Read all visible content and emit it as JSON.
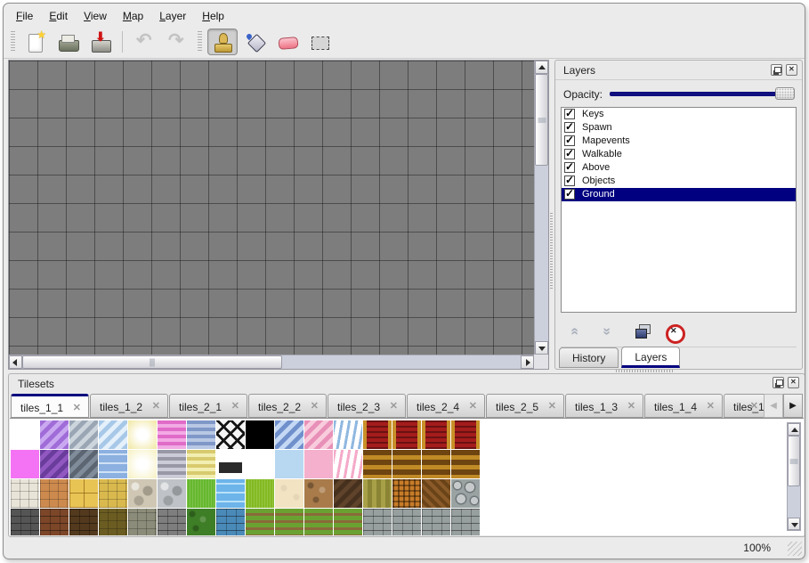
{
  "menu": {
    "items": [
      {
        "label": "File"
      },
      {
        "label": "Edit"
      },
      {
        "label": "View"
      },
      {
        "label": "Map"
      },
      {
        "label": "Layer"
      },
      {
        "label": "Help"
      }
    ]
  },
  "toolbar": {
    "buttons": [
      {
        "id": "new",
        "icon": "new-document-icon",
        "disabled": false,
        "active": false
      },
      {
        "id": "open",
        "icon": "open-folder-icon",
        "disabled": false,
        "active": false
      },
      {
        "id": "save",
        "icon": "save-icon",
        "disabled": false,
        "active": false
      },
      {
        "id": "undo",
        "icon": "undo-icon",
        "disabled": true,
        "active": false
      },
      {
        "id": "redo",
        "icon": "redo-icon",
        "disabled": true,
        "active": false
      },
      {
        "id": "stamp",
        "icon": "stamp-icon",
        "disabled": false,
        "active": true
      },
      {
        "id": "fill",
        "icon": "fill-bucket-icon",
        "disabled": false,
        "active": false
      },
      {
        "id": "eraser",
        "icon": "eraser-icon",
        "disabled": false,
        "active": false
      },
      {
        "id": "select",
        "icon": "selection-icon",
        "disabled": false,
        "active": false
      }
    ]
  },
  "layers_panel": {
    "title": "Layers",
    "opacity_label": "Opacity:",
    "opacity_value": 100,
    "titlebar_buttons": [
      {
        "icon": "float-panel-icon"
      },
      {
        "icon": "close-panel-icon"
      }
    ],
    "layers": [
      {
        "name": "Keys",
        "checked": true,
        "selected": false
      },
      {
        "name": "Spawn",
        "checked": true,
        "selected": false
      },
      {
        "name": "Mapevents",
        "checked": true,
        "selected": false
      },
      {
        "name": "Walkable",
        "checked": true,
        "selected": false
      },
      {
        "name": "Above",
        "checked": true,
        "selected": false
      },
      {
        "name": "Objects",
        "checked": true,
        "selected": false
      },
      {
        "name": "Ground",
        "checked": true,
        "selected": true
      }
    ],
    "actions": [
      {
        "id": "raise-layer",
        "icon": "raise-layer-icon"
      },
      {
        "id": "lower-layer",
        "icon": "lower-layer-icon"
      },
      {
        "id": "duplicate-layer",
        "icon": "duplicate-layer-icon"
      },
      {
        "id": "delete-layer",
        "icon": "delete-layer-icon"
      }
    ],
    "tabs": [
      {
        "label": "History",
        "active": false
      },
      {
        "label": "Layers",
        "active": true
      }
    ]
  },
  "tilesets_panel": {
    "title": "Tilesets",
    "titlebar_buttons": [
      {
        "icon": "float-panel-icon"
      },
      {
        "icon": "close-panel-icon"
      }
    ],
    "tabs": [
      {
        "label": "tiles_1_1",
        "active": true,
        "truncated": false
      },
      {
        "label": "tiles_1_2",
        "active": false,
        "truncated": false
      },
      {
        "label": "tiles_2_1",
        "active": false,
        "truncated": false
      },
      {
        "label": "tiles_2_2",
        "active": false,
        "truncated": false
      },
      {
        "label": "tiles_2_3",
        "active": false,
        "truncated": false
      },
      {
        "label": "tiles_2_4",
        "active": false,
        "truncated": false
      },
      {
        "label": "tiles_2_5",
        "active": false,
        "truncated": false
      },
      {
        "label": "tiles_1_3",
        "active": false,
        "truncated": false
      },
      {
        "label": "tiles_1_4",
        "active": false,
        "truncated": false
      },
      {
        "label": "tiles_1_",
        "active": false,
        "truncated": true
      }
    ],
    "tab_scroll_buttons": [
      {
        "icon": "scroll-tabs-left-icon",
        "glyph": "◀",
        "disabled": true
      },
      {
        "icon": "scroll-tabs-right-icon",
        "glyph": "▶",
        "disabled": false
      }
    ],
    "tiles": [
      [
        "empty",
        "diag:#a06cd8:#c9a8f0",
        "diag:#9aa6b4:#ccd4dc",
        "diag:#a8c8e8:#e4f0fa",
        "glow:#f2e9a8",
        "hs:#e06cc8:#f2aae4",
        "hs:#8098c8:#b8c8e4",
        "lattice",
        "solid:#000000",
        "diag:#7090cc:#c4d8f4",
        "diag:#e890b8:#f8ccdc",
        "wavy:#90b8e0",
        "carpet:#a41c1c:#c89028",
        "carpet:#a41c1c:#c89028",
        "carpet:#a41c1c:#c89028",
        "carpet:#a41c1c:#c89028"
      ],
      [
        "solid:#f473f4",
        "diag:#6a3c9c:#9058c0",
        "diag:#5c6672:#808c9a",
        "water:#8cb0e0:#d0e2f6",
        "glow:#f7f2c6",
        "hs:#9898a6:#ccccd8",
        "hs:#d8ca6e:#f2eeb2",
        "sign:#2a2a2a",
        "empty",
        "solid:#b8d8f2",
        "solid:#f4b0cc",
        "wavy:#f4aac8",
        "hs2:#6e4410:#c08a26",
        "hs2:#6e4410:#c08a26",
        "hs2:#6e4410:#c08a26",
        "hs2:#6e4410:#c08a26"
      ],
      [
        "stone:#e9e4d8",
        "stone:#cd8a4e",
        "tilegrid:#e8c455",
        "stone:#d9b94e",
        "pebble:#cfc7b4",
        "pebble:#bfc3c7",
        "grass:#66b82e",
        "water:#6cb4ea:#b8e0f8",
        "grass:#84ba22",
        "sand:#f2e3c2",
        "gravel:#a97b4a",
        "diag:#46301e:#5f432a",
        "vs:#a8a048:#8a8434",
        "weave:#c87c28:#7a4a16",
        "herr:#8a5a28:#6a4418",
        "logs:#9aa2a2"
      ],
      [
        "brick:#555555",
        "brick:#7c4628",
        "brick:#53391d",
        "stone:#6b5c22",
        "stone:#8c8c7a",
        "brick:#7e7e7e",
        "hedge:#3e7e26",
        "brick:#4a8ab8",
        "rows:#6aa232:#8a6a3a",
        "rows:#6aa232:#8a6a3a",
        "rows:#6aa232:#8a6a3a",
        "rows:#6aa232:#8a6a3a",
        "brick:#979f9f",
        "brick:#979f9f",
        "brick:#979f9f",
        "brick:#979f9f"
      ]
    ]
  },
  "status": {
    "zoom_level": "100%"
  },
  "colors": {
    "selection_navy": "#000080",
    "canvas_gray": "#7d7d7d",
    "window_bg": "#ebebeb",
    "eraser_pink": "#ee7384",
    "delete_red": "#cc2222"
  }
}
